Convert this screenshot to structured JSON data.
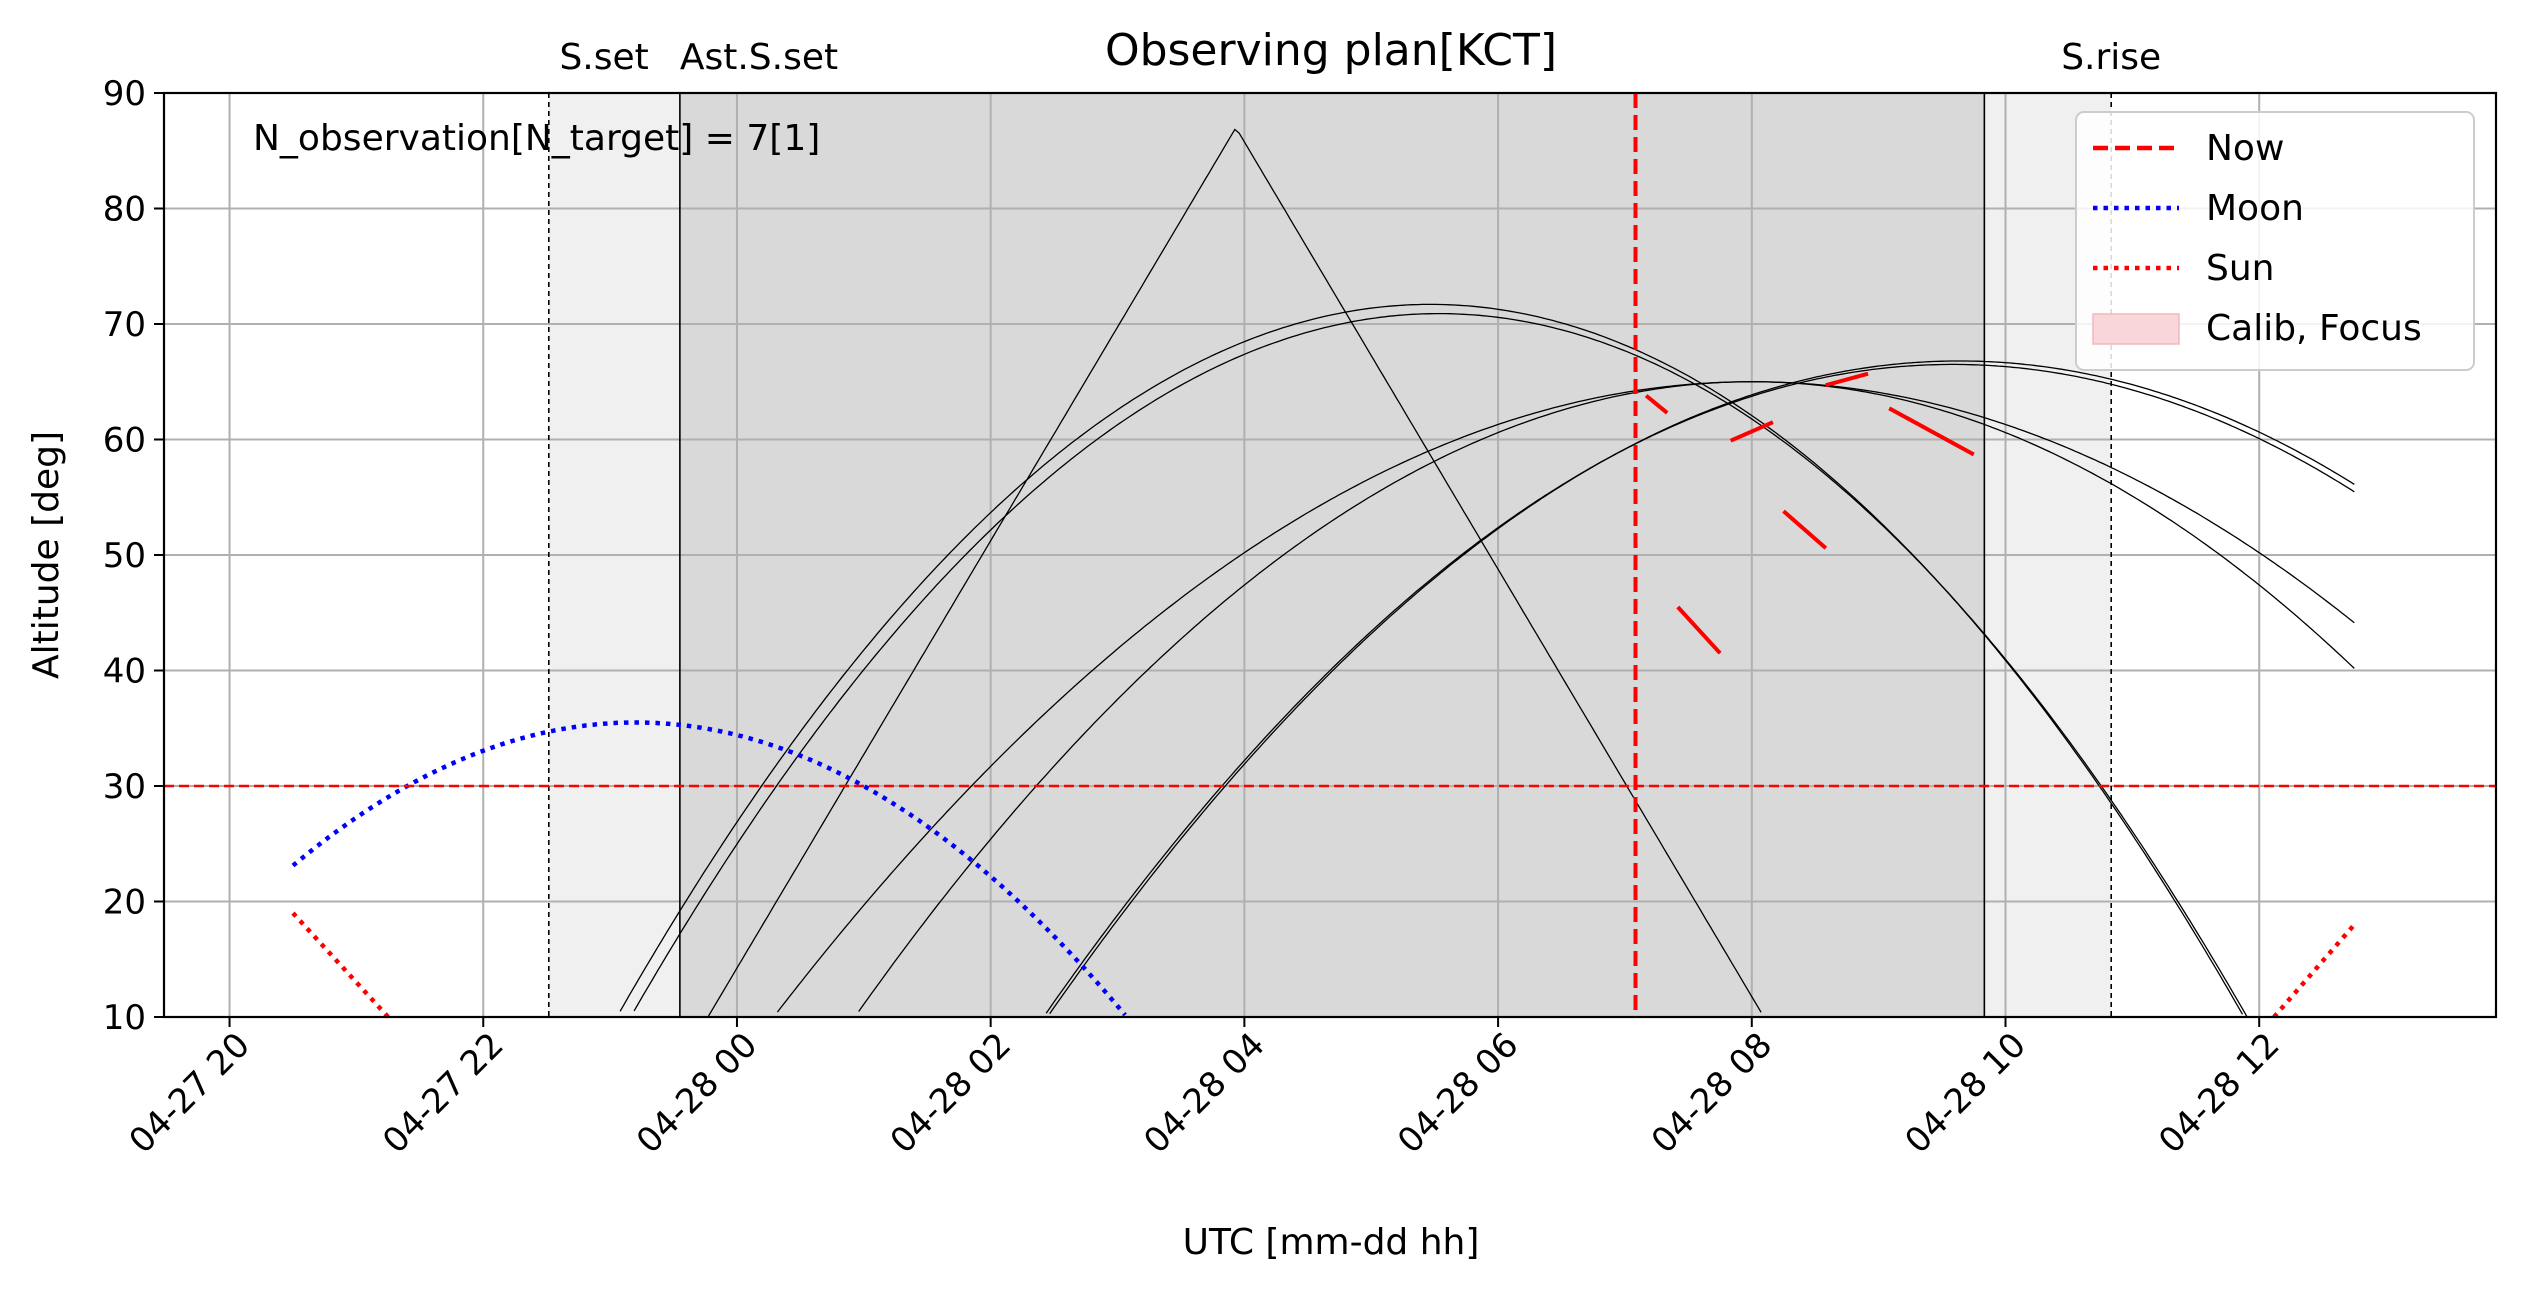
{
  "chart_data": {
    "type": "line",
    "title": "Observing plan[KCT]",
    "xlabel": "UTC [mm-dd hh]",
    "ylabel": "Altitude [deg]",
    "annotation": "N_observation[N_target] = 7[1]",
    "xlim": [
      "2025-04-27 19:29",
      "2025-04-28 13:52"
    ],
    "ylim": [
      10,
      90
    ],
    "grid": true,
    "legend_placement": "top-right",
    "x_ticks": [
      {
        "t": "2025-04-27 20:00",
        "label": "04-27 20"
      },
      {
        "t": "2025-04-27 22:00",
        "label": "04-27 22"
      },
      {
        "t": "2025-04-28 00:00",
        "label": "04-28 00"
      },
      {
        "t": "2025-04-28 02:00",
        "label": "04-28 02"
      },
      {
        "t": "2025-04-28 04:00",
        "label": "04-28 04"
      },
      {
        "t": "2025-04-28 06:00",
        "label": "04-28 06"
      },
      {
        "t": "2025-04-28 08:00",
        "label": "04-28 08"
      },
      {
        "t": "2025-04-28 10:00",
        "label": "04-28 10"
      },
      {
        "t": "2025-04-28 12:00",
        "label": "04-28 12"
      }
    ],
    "y_ticks": [
      10,
      20,
      30,
      40,
      50,
      60,
      70,
      80,
      90
    ],
    "altitude_limit": 30,
    "now": "2025-04-28 07:05",
    "events": [
      {
        "label": "S.set",
        "t": "2025-04-27 22:31"
      },
      {
        "label": "Ast.S.set",
        "t": "2025-04-27 23:33"
      },
      {
        "label": "S.rise",
        "t": "2025-04-28 10:50"
      }
    ],
    "ast_sunrise": "2025-04-28 09:50",
    "colors": {
      "now": "#ff0000",
      "moon": "#0000ff",
      "sun": "#ff0000",
      "limit": "#ff0000",
      "targets": "#000000",
      "observed": "#ff0000",
      "twilight_shade": "#f0f0f0",
      "night_shade": "#d9d9d9",
      "calib_patch": "#f9d6d9",
      "grid": "#b0b0b0"
    },
    "legend": [
      {
        "label": "Now",
        "style": "dashed",
        "color": "#ff0000"
      },
      {
        "label": "Moon",
        "style": "dotted",
        "color": "#0000ff"
      },
      {
        "label": "Sun",
        "style": "dotted",
        "color": "#ff0000"
      },
      {
        "label": "Calib, Focus",
        "style": "patch",
        "color": "#f9d6d9"
      }
    ],
    "moon": {
      "peak_t": "2025-04-27 23:12",
      "peak_alt": 35.5,
      "start_t": "2025-04-27 20:30",
      "end_t": "2025-04-28 03:20",
      "curvature": 1.7
    },
    "sun": [
      {
        "x": [
          "2025-04-27 20:30",
          "2025-04-27 21:15"
        ],
        "y": [
          19,
          10
        ]
      },
      {
        "x": [
          "2025-04-28 12:07",
          "2025-04-28 12:45"
        ],
        "y": [
          10,
          18
        ]
      }
    ],
    "series": [
      {
        "peak_t": "2025-04-28 03:56",
        "peak_alt": 87.0,
        "slope": 18.5,
        "start_t": "2025-04-27 21:18",
        "end_t": "2025-04-28 10:41",
        "observed": [
          {
            "x": [
              "2025-04-28 07:25",
              "2025-04-28 07:45"
            ],
            "y": [
              45.5,
              41.5
            ]
          }
        ]
      },
      {
        "peak_t": "2025-04-28 05:28",
        "peak_alt": 71.7,
        "curvature": 1.5,
        "start_t": "2025-04-27 22:03",
        "end_t": "2025-04-28 12:45",
        "observed": []
      },
      {
        "peak_t": "2025-04-28 05:32",
        "peak_alt": 70.9,
        "curvature": 1.5,
        "start_t": "2025-04-27 22:03",
        "end_t": "2025-04-28 12:45",
        "observed": [
          {
            "x": [
              "2025-04-28 07:10",
              "2025-04-28 07:20"
            ],
            "y": [
              63.8,
              62.3
            ]
          },
          {
            "x": [
              "2025-04-28 08:15",
              "2025-04-28 08:35"
            ],
            "y": [
              53.8,
              50.6
            ]
          }
        ]
      },
      {
        "peak_t": "2025-04-28 08:00",
        "peak_alt": 65.0,
        "curvature": 0.925,
        "start_t": "2025-04-28 00:00",
        "end_t": "2025-04-28 12:45",
        "observed": []
      },
      {
        "peak_t": "2025-04-28 09:35",
        "peak_alt": 66.5,
        "curvature": 1.1,
        "start_t": "2025-04-28 01:45",
        "end_t": "2025-04-28 12:45",
        "observed": [
          {
            "x": [
              "2025-04-28 07:50",
              "2025-04-28 08:10"
            ],
            "y": [
              59.9,
              61.5
            ]
          }
        ]
      },
      {
        "peak_t": "2025-04-28 09:38",
        "peak_alt": 66.8,
        "curvature": 1.1,
        "start_t": "2025-04-28 01:45",
        "end_t": "2025-04-28 12:45",
        "observed": [
          {
            "x": [
              "2025-04-28 08:35",
              "2025-04-28 08:55"
            ],
            "y": [
              64.7,
              65.7
            ]
          },
          {
            "x": [
              "2025-04-28 09:05",
              "2025-04-28 09:45"
            ],
            "y": [
              62.7,
              58.7
            ]
          }
        ]
      },
      {
        "peak_t": "2025-04-28 08:00",
        "peak_alt": 65.0,
        "curvature": 1.1,
        "start_t": "2025-04-27 23:00",
        "end_t": "2025-04-28 12:45",
        "observed": []
      }
    ]
  }
}
